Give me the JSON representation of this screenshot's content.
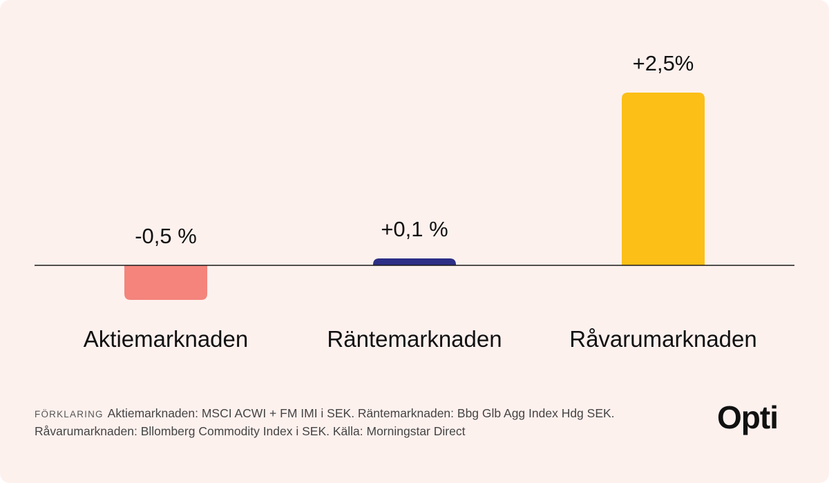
{
  "chart_data": {
    "type": "bar",
    "categories": [
      "Aktiemarknaden",
      "Räntemarknaden",
      "Råvarumarknaden"
    ],
    "values": [
      -0.5,
      0.1,
      2.5
    ],
    "value_labels": [
      "-0,5 %",
      "+0,1 %",
      "+2,5%"
    ],
    "colors": [
      "#f4847c",
      "#2d2f86",
      "#fbbf17"
    ],
    "ylim": [
      -1.0,
      2.6
    ],
    "title": "",
    "xlabel": "",
    "ylabel": "",
    "grid": false,
    "zero_line_color": "#1a1a1a"
  },
  "footnote": {
    "lead": "Förklaring",
    "text": "Aktiemarknaden: MSCI ACWI + FM IMI i SEK. Räntemarknaden: Bbg Glb Agg Index Hdg SEK. Råvarumarknaden: Bllomberg Commodity Index i SEK. Källa: Morningstar Direct"
  },
  "brand": {
    "name": "Opti"
  }
}
